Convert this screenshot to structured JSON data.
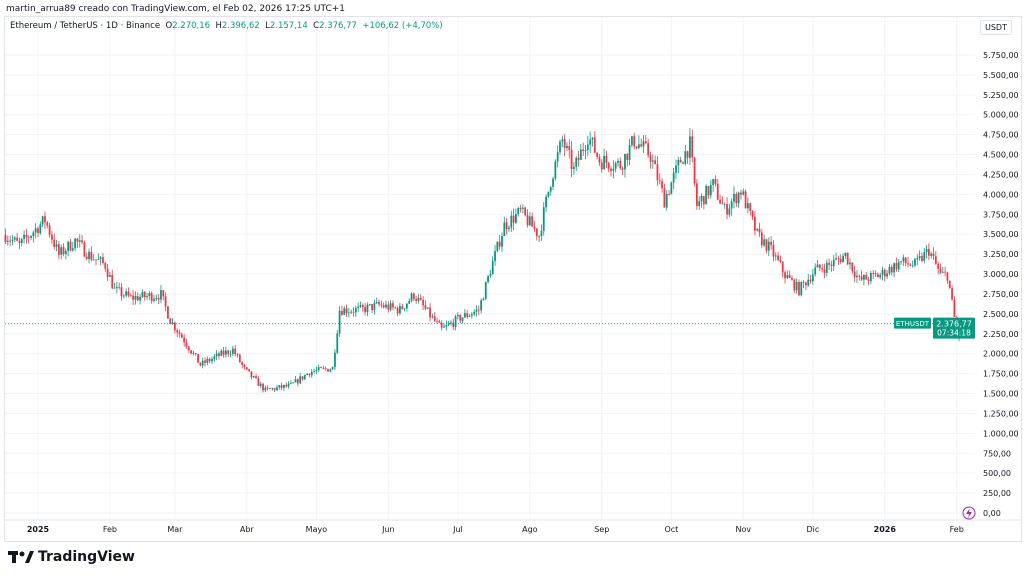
{
  "credit": "martin_arrua89 creado con TradingView.com, el Feb 02, 2026 17:25 UTC+1",
  "legend": {
    "symbol": "Ethereum / TetherUS · 1D · Binance",
    "o_label": "O",
    "o": "2.270,16",
    "h_label": "H",
    "h": "2.396,62",
    "l_label": "L",
    "l": "2.157,14",
    "c_label": "C",
    "c": "2.376,77",
    "change": "+106,62 (+4,70%)"
  },
  "unit": "USDT",
  "price_tag": {
    "symbol": "ETHUSDT",
    "price": "2.376,77",
    "countdown": "07:34:18"
  },
  "logo": "TradingView",
  "colors": {
    "up": "#089981",
    "down": "#f23645",
    "grid": "#f0f3fa"
  },
  "chart_data": {
    "type": "candlestick",
    "y_ticks": [
      "0,00",
      "250,00",
      "500,00",
      "750,00",
      "1.000,00",
      "1.250,00",
      "1.500,00",
      "1.750,00",
      "2.000,00",
      "2.250,00",
      "2.500,00",
      "2.750,00",
      "3.000,00",
      "3.250,00",
      "3.500,00",
      "3.750,00",
      "4.000,00",
      "4.250,00",
      "4.500,00",
      "4.750,00",
      "5.000,00",
      "5.250,00",
      "5.500,00",
      "5.750,00"
    ],
    "ylim": [
      0,
      5750
    ],
    "x_ticks": [
      {
        "label": "2025",
        "date": "2025-01-01",
        "bold": true
      },
      {
        "label": "Feb",
        "date": "2025-02-01"
      },
      {
        "label": "Mar",
        "date": "2025-03-01"
      },
      {
        "label": "Abr",
        "date": "2025-04-01"
      },
      {
        "label": "Mayo",
        "date": "2025-05-01"
      },
      {
        "label": "Jun",
        "date": "2025-06-01"
      },
      {
        "label": "Jul",
        "date": "2025-07-01"
      },
      {
        "label": "Ago",
        "date": "2025-08-01"
      },
      {
        "label": "Sep",
        "date": "2025-09-01"
      },
      {
        "label": "Oct",
        "date": "2025-10-01"
      },
      {
        "label": "Nov",
        "date": "2025-11-01"
      },
      {
        "label": "Dic",
        "date": "2025-12-01"
      },
      {
        "label": "2026",
        "date": "2026-01-01",
        "bold": true
      },
      {
        "label": "Feb",
        "date": "2026-02-01"
      }
    ],
    "approx_closes": [
      [
        "2024-12-18",
        3490
      ],
      [
        "2024-12-24",
        3360
      ],
      [
        "2025-01-04",
        3680
      ],
      [
        "2025-01-10",
        3240
      ],
      [
        "2025-01-17",
        3420
      ],
      [
        "2025-01-23",
        3240
      ],
      [
        "2025-01-30",
        3110
      ],
      [
        "2025-02-03",
        2800
      ],
      [
        "2025-02-10",
        2700
      ],
      [
        "2025-02-23",
        2740
      ],
      [
        "2025-02-27",
        2420
      ],
      [
        "2025-03-05",
        2170
      ],
      [
        "2025-03-12",
        1860
      ],
      [
        "2025-03-20",
        1980
      ],
      [
        "2025-03-26",
        2050
      ],
      [
        "2025-03-31",
        1800
      ],
      [
        "2025-04-09",
        1540
      ],
      [
        "2025-04-20",
        1600
      ],
      [
        "2025-04-28",
        1770
      ],
      [
        "2025-05-08",
        1820
      ],
      [
        "2025-05-11",
        2550
      ],
      [
        "2025-05-20",
        2550
      ],
      [
        "2025-05-28",
        2610
      ],
      [
        "2025-06-06",
        2550
      ],
      [
        "2025-06-12",
        2740
      ],
      [
        "2025-06-19",
        2480
      ],
      [
        "2025-06-24",
        2300
      ],
      [
        "2025-07-02",
        2450
      ],
      [
        "2025-07-10",
        2550
      ],
      [
        "2025-07-15",
        3050
      ],
      [
        "2025-07-21",
        3610
      ],
      [
        "2025-07-28",
        3780
      ],
      [
        "2025-08-05",
        3490
      ],
      [
        "2025-08-10",
        4180
      ],
      [
        "2025-08-15",
        4680
      ],
      [
        "2025-08-20",
        4300
      ],
      [
        "2025-08-26",
        4740
      ],
      [
        "2025-08-31",
        4430
      ],
      [
        "2025-09-09",
        4370
      ],
      [
        "2025-09-15",
        4680
      ],
      [
        "2025-09-22",
        4490
      ],
      [
        "2025-09-28",
        3930
      ],
      [
        "2025-10-05",
        4430
      ],
      [
        "2025-10-09",
        4620
      ],
      [
        "2025-10-12",
        3860
      ],
      [
        "2025-10-19",
        4120
      ],
      [
        "2025-10-24",
        3800
      ],
      [
        "2025-10-31",
        4050
      ],
      [
        "2025-11-07",
        3490
      ],
      [
        "2025-11-13",
        3300
      ],
      [
        "2025-11-19",
        2990
      ],
      [
        "2025-11-25",
        2800
      ],
      [
        "2025-12-02",
        3050
      ],
      [
        "2025-12-08",
        3110
      ],
      [
        "2025-12-15",
        3240
      ],
      [
        "2025-12-21",
        2920
      ],
      [
        "2025-12-30",
        2990
      ],
      [
        "2026-01-08",
        3150
      ],
      [
        "2026-01-14",
        3110
      ],
      [
        "2026-01-20",
        3300
      ],
      [
        "2026-01-25",
        2990
      ],
      [
        "2026-01-28",
        2990
      ],
      [
        "2026-01-31",
        2450
      ],
      [
        "2026-02-01",
        2270
      ]
    ],
    "last_candle": {
      "date": "2026-02-02",
      "open": 2270.16,
      "high": 2396.62,
      "low": 2157.14,
      "close": 2376.77
    }
  }
}
